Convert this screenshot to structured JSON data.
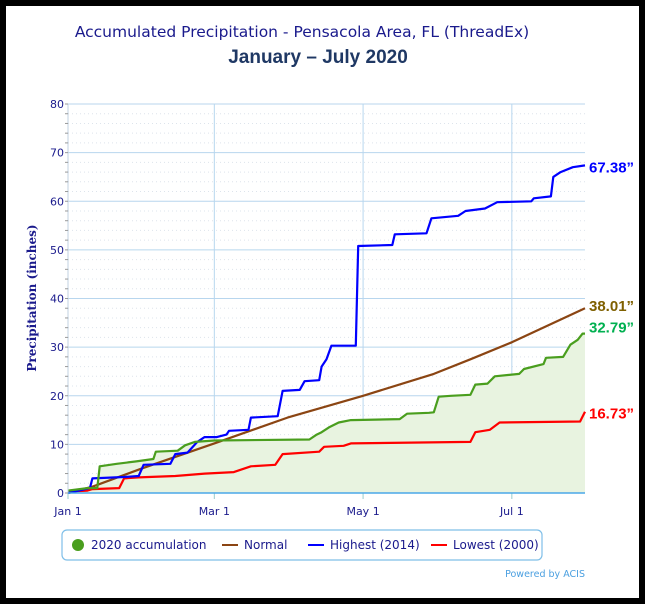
{
  "chart_data": {
    "type": "line",
    "title": "Accumulated Precipitation - Pensacola Area, FL (ThreadEx)",
    "subtitle": "January – July 2020",
    "xlabel": "",
    "ylabel": "Precipitation (inches)",
    "xlim_days": [
      0,
      212
    ],
    "ylim": [
      0,
      80
    ],
    "yticks": [
      0,
      10,
      20,
      30,
      40,
      50,
      60,
      70,
      80
    ],
    "xticks": [
      {
        "day": 0,
        "label": "Jan 1"
      },
      {
        "day": 60,
        "label": "Mar 1"
      },
      {
        "day": 121,
        "label": "May 1"
      },
      {
        "day": 182,
        "label": "Jul 1"
      }
    ],
    "grid": true,
    "legend_position": "bottom",
    "credit": "Powered by ACIS",
    "series": [
      {
        "name": "2020 accumulation",
        "color": "#4a9e1e",
        "fill": "#e8f3e0",
        "end_label": "32.79”",
        "end_label_color": "#00b050",
        "points": [
          [
            0,
            0.5
          ],
          [
            8,
            1
          ],
          [
            12,
            1
          ],
          [
            13,
            5.5
          ],
          [
            20,
            6
          ],
          [
            28,
            6.5
          ],
          [
            35,
            7
          ],
          [
            36,
            8.5
          ],
          [
            45,
            8.7
          ],
          [
            48,
            9.8
          ],
          [
            52,
            10.5
          ],
          [
            60,
            10.8
          ],
          [
            99,
            11
          ],
          [
            102,
            12
          ],
          [
            104,
            12.5
          ],
          [
            107,
            13.5
          ],
          [
            111,
            14.5
          ],
          [
            116,
            15
          ],
          [
            136,
            15.2
          ],
          [
            139,
            16.3
          ],
          [
            148,
            16.5
          ],
          [
            150,
            16.6
          ],
          [
            152,
            19.8
          ],
          [
            157,
            20
          ],
          [
            165,
            20.2
          ],
          [
            167,
            22.3
          ],
          [
            172,
            22.5
          ],
          [
            175,
            24
          ],
          [
            185,
            24.5
          ],
          [
            187,
            25.5
          ],
          [
            195,
            26.5
          ],
          [
            196,
            27.8
          ],
          [
            203,
            28
          ],
          [
            206,
            30.5
          ],
          [
            209,
            31.5
          ],
          [
            211,
            32.79
          ],
          [
            212,
            32.79
          ]
        ]
      },
      {
        "name": "Normal",
        "color": "#8b4513",
        "end_label": "38.01”",
        "end_label_color": "#7f6000",
        "points": [
          [
            0,
            0
          ],
          [
            10,
            1.3
          ],
          [
            30,
            5
          ],
          [
            60,
            10.2
          ],
          [
            90,
            15.5
          ],
          [
            121,
            20
          ],
          [
            150,
            24.5
          ],
          [
            165,
            27.5
          ],
          [
            182,
            31
          ],
          [
            212,
            38.01
          ]
        ]
      },
      {
        "name": "Highest (2014)",
        "color": "#0000ff",
        "end_label": "67.38”",
        "end_label_color": "#0000ff",
        "points": [
          [
            0,
            0
          ],
          [
            9,
            1
          ],
          [
            10,
            3
          ],
          [
            23,
            3.3
          ],
          [
            29,
            3.5
          ],
          [
            31,
            5.8
          ],
          [
            42,
            6
          ],
          [
            44,
            8
          ],
          [
            49,
            8.3
          ],
          [
            53,
            10.5
          ],
          [
            56,
            11.5
          ],
          [
            61,
            11.5
          ],
          [
            65,
            12
          ],
          [
            66,
            12.8
          ],
          [
            74,
            13
          ],
          [
            75,
            15.5
          ],
          [
            86,
            15.8
          ],
          [
            88,
            21
          ],
          [
            95,
            21.2
          ],
          [
            97,
            23
          ],
          [
            103,
            23.2
          ],
          [
            104,
            26
          ],
          [
            106,
            27.5
          ],
          [
            108,
            30.3
          ],
          [
            118,
            30.3
          ],
          [
            119,
            50.8
          ],
          [
            133,
            51
          ],
          [
            134,
            53.2
          ],
          [
            147,
            53.4
          ],
          [
            149,
            56.5
          ],
          [
            160,
            57
          ],
          [
            163,
            58
          ],
          [
            171,
            58.5
          ],
          [
            176,
            59.8
          ],
          [
            190,
            60
          ],
          [
            191,
            60.6
          ],
          [
            198,
            61
          ],
          [
            199,
            65
          ],
          [
            202,
            66
          ],
          [
            207,
            67
          ],
          [
            212,
            67.38
          ]
        ]
      },
      {
        "name": "Lowest (2000)",
        "color": "#ff0000",
        "end_label": "16.73”",
        "end_label_color": "#ff0000",
        "points": [
          [
            0,
            0.3
          ],
          [
            8,
            0.5
          ],
          [
            10,
            0.8
          ],
          [
            21,
            1
          ],
          [
            23,
            3
          ],
          [
            29,
            3.2
          ],
          [
            44,
            3.5
          ],
          [
            56,
            4
          ],
          [
            68,
            4.3
          ],
          [
            75,
            5.5
          ],
          [
            85,
            5.8
          ],
          [
            88,
            8
          ],
          [
            103,
            8.5
          ],
          [
            105,
            9.5
          ],
          [
            113,
            9.7
          ],
          [
            116,
            10.2
          ],
          [
            165,
            10.5
          ],
          [
            167,
            12.5
          ],
          [
            173,
            13
          ],
          [
            177,
            14.5
          ],
          [
            210,
            14.7
          ],
          [
            212,
            16.73
          ]
        ]
      }
    ]
  }
}
